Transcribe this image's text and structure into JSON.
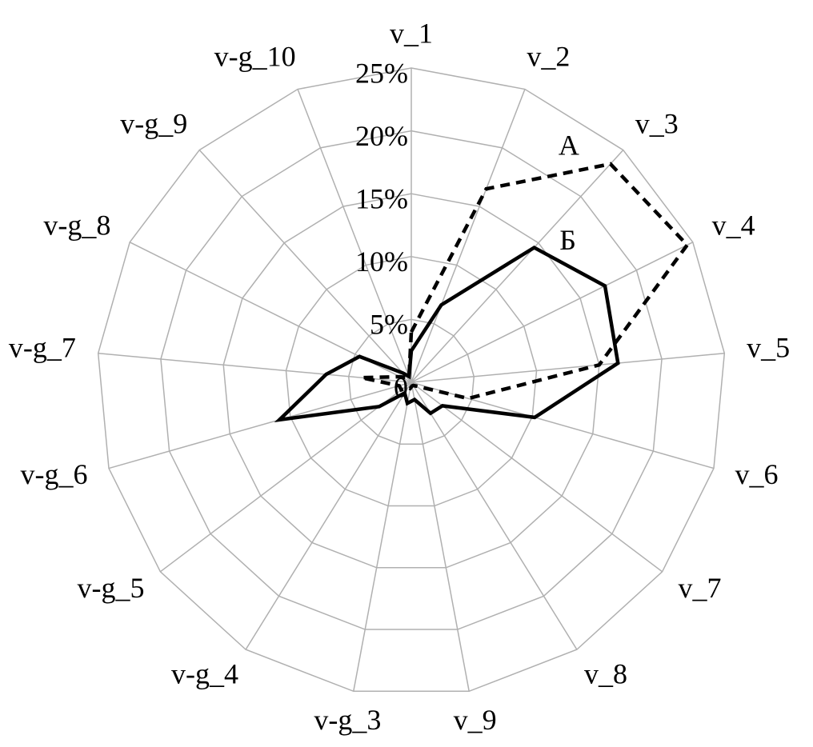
{
  "chart_data": {
    "type": "radar",
    "categories": [
      "v_1",
      "v_2",
      "v_3",
      "v_4",
      "v_5",
      "v_6",
      "v_7",
      "v_8",
      "v_9",
      "v-g_3",
      "v-g_4",
      "v-g_5",
      "v-g_6",
      "v-g_7",
      "v-g_8",
      "v-g_9",
      "v-g_10"
    ],
    "ylim": [
      0,
      25
    ],
    "yticks": [
      0,
      {
        "value": 5,
        "label": "5%"
      },
      {
        "value": 10,
        "label": "10%"
      },
      {
        "value": 15,
        "label": "15%"
      },
      {
        "value": 20,
        "label": "20%"
      },
      {
        "value": 25,
        "label": "25%"
      }
    ],
    "grid": true,
    "series": [
      {
        "name": "А",
        "color": "#000000",
        "dash": true,
        "values": [
          4,
          16.5,
          23.5,
          24.5,
          15,
          4.7,
          0.5,
          0.3,
          0.3,
          0.5,
          0.5,
          1,
          1,
          4,
          1,
          0.5,
          0.5
        ]
      },
      {
        "name": "Б",
        "color": "#000000",
        "dash": false,
        "values": [
          2.5,
          6.6,
          14.5,
          17.2,
          16.5,
          10.2,
          3.1,
          2.9,
          1.4,
          1.7,
          1,
          3.2,
          10.9,
          6.8,
          4.6,
          1,
          0.5
        ]
      }
    ]
  }
}
